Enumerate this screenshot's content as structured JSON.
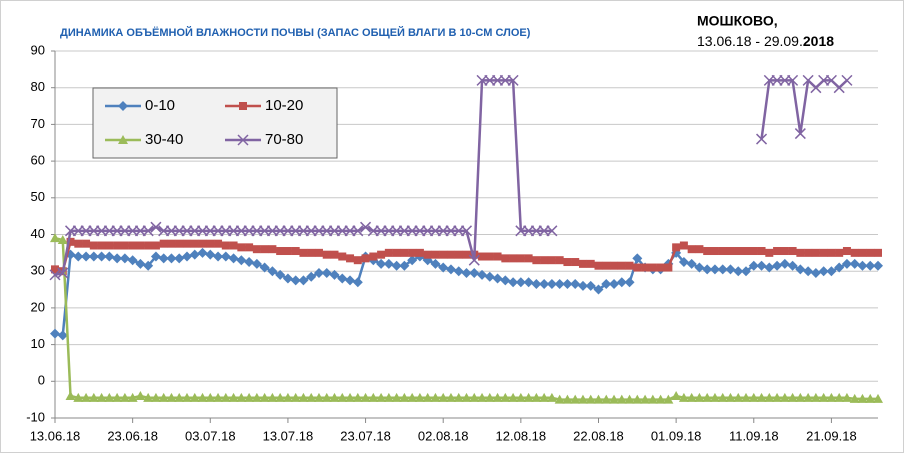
{
  "chart_data": {
    "type": "line",
    "title": "ДИНАМИКА ОБЪЁМНОЙ ВЛАЖНОСТИ ПОЧВЫ (ЗАПАС ОБЩЕЙ ВЛАГИ В 10-СМ СЛОЕ)",
    "location": "МОШКОВО,",
    "period": "13.06.18 - 29.09.",
    "period_year": "2018",
    "categories": [
      "13.06.18",
      null,
      null,
      null,
      null,
      null,
      null,
      null,
      null,
      null,
      "23.06.18",
      null,
      null,
      null,
      null,
      null,
      null,
      null,
      null,
      null,
      "03.07.18",
      null,
      null,
      null,
      null,
      null,
      null,
      null,
      null,
      null,
      "13.07.18",
      null,
      null,
      null,
      null,
      null,
      null,
      null,
      null,
      null,
      "23.07.18",
      null,
      null,
      null,
      null,
      null,
      null,
      null,
      null,
      null,
      "02.08.18",
      null,
      null,
      null,
      null,
      null,
      null,
      null,
      null,
      null,
      "12.08.18",
      null,
      null,
      null,
      null,
      null,
      null,
      null,
      null,
      null,
      "22.08.18",
      null,
      null,
      null,
      null,
      null,
      null,
      null,
      null,
      null,
      "01.09.18",
      null,
      null,
      null,
      null,
      null,
      null,
      null,
      null,
      null,
      "11.09.18",
      null,
      null,
      null,
      null,
      null,
      null,
      null,
      null,
      null,
      "21.09.18",
      null,
      null,
      null,
      null,
      null,
      null
    ],
    "series": [
      {
        "name": "0-10",
        "color": "#4f81bd",
        "marker": "diamond",
        "values": [
          13,
          12.5,
          34.5,
          34,
          34,
          34,
          34,
          34,
          33.5,
          33.5,
          33,
          32,
          31.5,
          34,
          33.5,
          33.5,
          33.5,
          34,
          34.5,
          35,
          34.5,
          34,
          34,
          33.5,
          33,
          32.5,
          32,
          31,
          30,
          29,
          28,
          27.5,
          27.5,
          28.5,
          29.5,
          29.5,
          29,
          28,
          27.5,
          27,
          34,
          33,
          32,
          32,
          31.5,
          31.5,
          33,
          34,
          33,
          32,
          31,
          30.5,
          30,
          29.5,
          29.5,
          29,
          28.5,
          28,
          27.5,
          27,
          27,
          27,
          26.5,
          26.5,
          26.5,
          26.5,
          26.5,
          26.5,
          26,
          26,
          25,
          26.5,
          26.5,
          27,
          27,
          33.5,
          31,
          30.5,
          30.5,
          32,
          35,
          32.5,
          32,
          31,
          30.5,
          30.5,
          30.5,
          30.5,
          30,
          30,
          31.5,
          31.5,
          31,
          31.5,
          32,
          31.5,
          30.5,
          30,
          29.5,
          30,
          30,
          31,
          32,
          32,
          31.5,
          31.5,
          31.5
        ]
      },
      {
        "name": "10-20",
        "color": "#c0504d",
        "marker": "square",
        "values": [
          30.5,
          30,
          38,
          37.5,
          37.5,
          37,
          37,
          37,
          37,
          37,
          37,
          37,
          37,
          37,
          37.5,
          37.5,
          37.5,
          37.5,
          37.5,
          37.5,
          37.5,
          37.5,
          37,
          37,
          36.5,
          36.5,
          36,
          36,
          36,
          35.5,
          35.5,
          35.5,
          35,
          35,
          35,
          34.5,
          34.5,
          34,
          33.5,
          33,
          33.5,
          34,
          34.5,
          35,
          35,
          35,
          35,
          35,
          34.5,
          34.5,
          34.5,
          34.5,
          34.5,
          34.5,
          34.5,
          34,
          34,
          34,
          33.5,
          33.5,
          33.5,
          33.5,
          33,
          33,
          33,
          33,
          32.5,
          32.5,
          32,
          32,
          31.5,
          31.5,
          31.5,
          31.5,
          31.5,
          31,
          31,
          31,
          31,
          31,
          36.5,
          37,
          36,
          36,
          35.5,
          35.5,
          35.5,
          35.5,
          35.5,
          35.5,
          35.5,
          35.5,
          35,
          35.5,
          35.5,
          35.5,
          35,
          35,
          35,
          35,
          35,
          35,
          35.5,
          35,
          35,
          35,
          35
        ]
      },
      {
        "name": "30-40",
        "color": "#9bbb59",
        "marker": "triangle",
        "values": [
          39,
          38.5,
          -4,
          -4.5,
          -4.5,
          -4.5,
          -4.5,
          -4.5,
          -4.5,
          -4.5,
          -4.5,
          -4,
          -4.5,
          -4.5,
          -4.5,
          -4.5,
          -4.5,
          -4.5,
          -4.5,
          -4.5,
          -4.5,
          -4.5,
          -4.5,
          -4.5,
          -4.5,
          -4.5,
          -4.5,
          -4.5,
          -4.5,
          -4.5,
          -4.5,
          -4.5,
          -4.5,
          -4.5,
          -4.5,
          -4.5,
          -4.5,
          -4.5,
          -4.5,
          -4.5,
          -4.5,
          -4.5,
          -4.5,
          -4.5,
          -4.5,
          -4.5,
          -4.5,
          -4.5,
          -4.5,
          -4.5,
          -4.5,
          -4.5,
          -4.5,
          -4.5,
          -4.5,
          -4.5,
          -4.5,
          -4.5,
          -4.5,
          -4.5,
          -4.5,
          -4.5,
          -4.5,
          -4.5,
          -4.5,
          -5,
          -5,
          -5,
          -5,
          -5,
          -5,
          -5,
          -5,
          -5,
          -5,
          -5,
          -5,
          -5,
          -5,
          -5,
          -4,
          -4.5,
          -4.5,
          -4.5,
          -4.5,
          -4.5,
          -4.5,
          -4.5,
          -4.5,
          -4.5,
          -4.5,
          -4.5,
          -4.5,
          -4.5,
          -4.5,
          -4.5,
          -4.5,
          -4.5,
          -4.5,
          -4.5,
          -4.5,
          -4.5,
          -4.5,
          -4.8,
          -4.8,
          -4.8,
          -4.8
        ]
      },
      {
        "name": "70-80",
        "color": "#8064a2",
        "marker": "x",
        "values": [
          29,
          29.5,
          41,
          41,
          41,
          41,
          41,
          41,
          41,
          41,
          41,
          41,
          41,
          42,
          41,
          41,
          41,
          41,
          41,
          41,
          41,
          41,
          41,
          41,
          41,
          41,
          41,
          41,
          41,
          41,
          41,
          41,
          41,
          41,
          41,
          41,
          41,
          41,
          41,
          41,
          42,
          41,
          41,
          41,
          41,
          41,
          41,
          41,
          41,
          41,
          41,
          41,
          41,
          41,
          33,
          82,
          82,
          82,
          82,
          82,
          41,
          41,
          41,
          41,
          41,
          null,
          null,
          null,
          null,
          null,
          null,
          null,
          null,
          null,
          null,
          null,
          null,
          null,
          null,
          null,
          null,
          null,
          null,
          null,
          null,
          null,
          null,
          null,
          null,
          null,
          null,
          66,
          82,
          82,
          82,
          82,
          67.5,
          82,
          80,
          82,
          82,
          80,
          82,
          null,
          null,
          null,
          null
        ]
      }
    ],
    "ylim": [
      -10,
      90
    ],
    "yticks": [
      -10,
      0,
      10,
      20,
      30,
      40,
      50,
      60,
      70,
      80,
      90
    ],
    "grid": true,
    "legend": "upper left"
  }
}
